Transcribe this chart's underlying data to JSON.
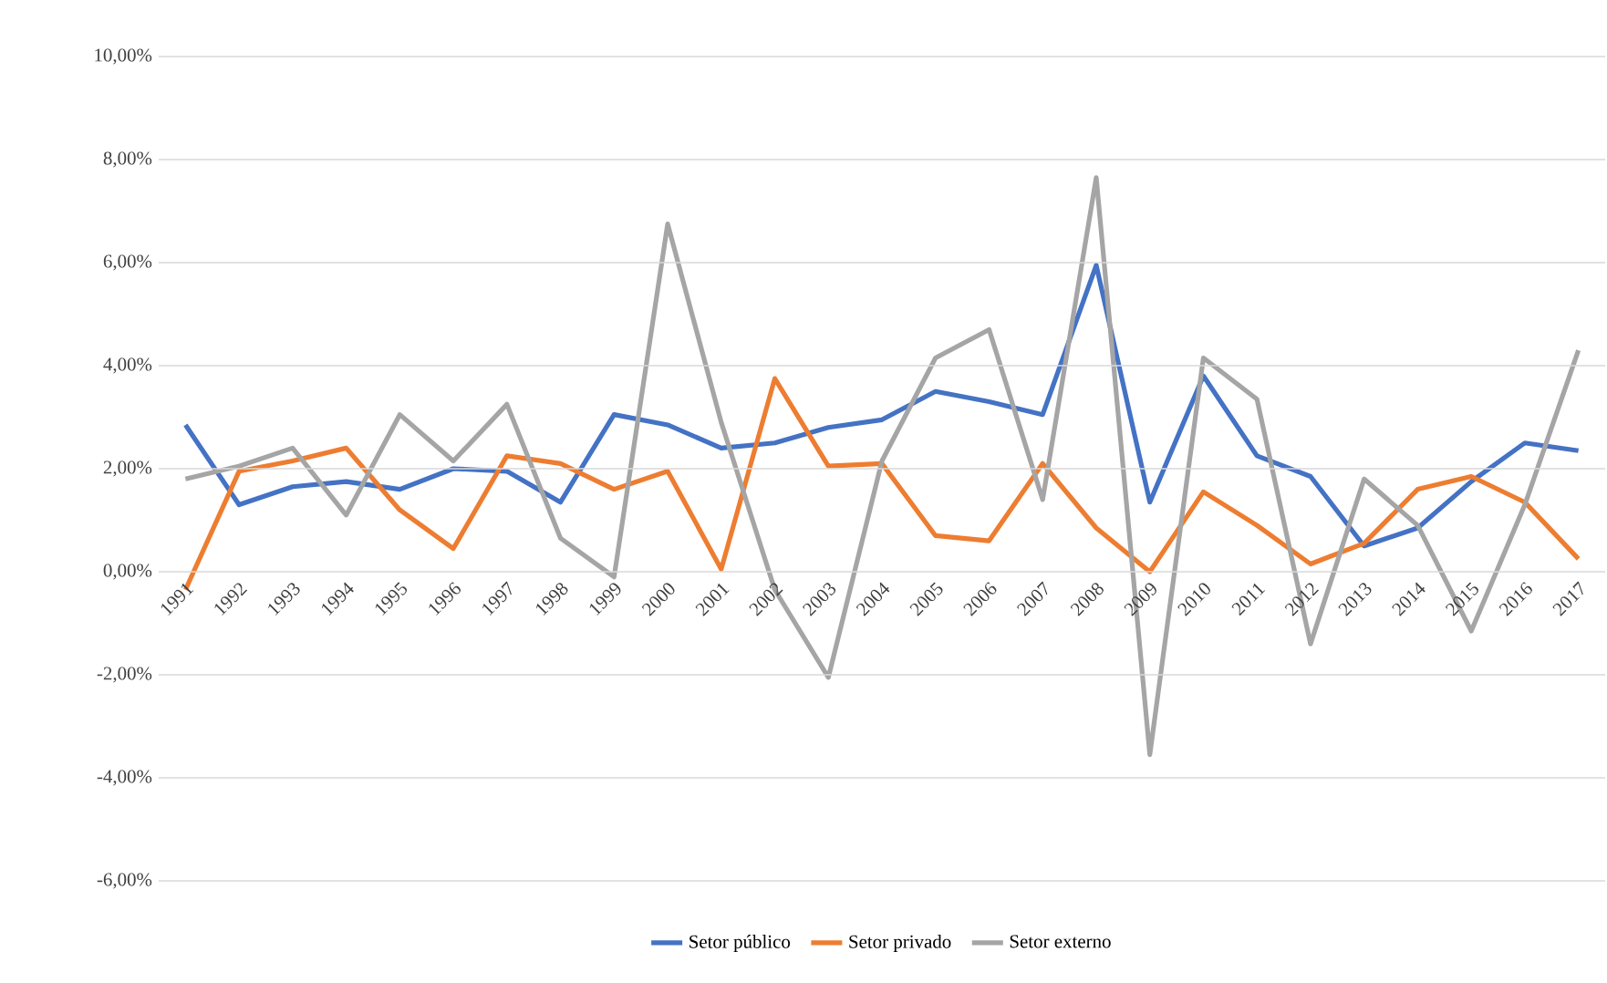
{
  "chart_data": {
    "type": "line",
    "categories": [
      "1991",
      "1992",
      "1993",
      "1994",
      "1995",
      "1996",
      "1997",
      "1998",
      "1999",
      "2000",
      "2001",
      "2002",
      "2003",
      "2004",
      "2005",
      "2006",
      "2007",
      "2008",
      "2009",
      "2010",
      "2011",
      "2012",
      "2013",
      "2014",
      "2015",
      "2016",
      "2017"
    ],
    "series": [
      {
        "name": "Setor público",
        "color": "#4472c4",
        "values": [
          2.85,
          1.3,
          1.65,
          1.75,
          1.6,
          2.0,
          1.95,
          1.35,
          3.05,
          2.85,
          2.4,
          2.5,
          2.8,
          2.95,
          3.5,
          3.3,
          3.05,
          5.95,
          1.35,
          3.8,
          2.25,
          1.85,
          0.5,
          0.85,
          1.75,
          2.5,
          2.35
        ]
      },
      {
        "name": "Setor privado",
        "color": "#ed7d31",
        "values": [
          -0.35,
          1.95,
          2.15,
          2.4,
          1.2,
          0.45,
          2.25,
          2.1,
          1.6,
          1.95,
          0.05,
          3.75,
          2.05,
          2.1,
          0.7,
          0.6,
          2.1,
          0.85,
          0.0,
          1.55,
          0.9,
          0.15,
          0.55,
          1.6,
          1.85,
          1.35,
          0.25
        ]
      },
      {
        "name": "Setor externo",
        "color": "#a5a5a5",
        "values": [
          1.8,
          2.05,
          2.4,
          1.1,
          3.05,
          2.15,
          3.25,
          0.65,
          -0.1,
          6.75,
          2.9,
          -0.35,
          -2.05,
          2.15,
          4.15,
          4.7,
          1.4,
          7.65,
          -3.55,
          4.15,
          3.35,
          -1.4,
          1.8,
          0.9,
          -1.15,
          1.3,
          4.3
        ]
      }
    ],
    "ylim": [
      -6,
      10
    ],
    "yticks": [
      {
        "value": -6,
        "label": "-6,00%"
      },
      {
        "value": -4,
        "label": "-4,00%"
      },
      {
        "value": -2,
        "label": "-2,00%"
      },
      {
        "value": 0,
        "label": "0,00%"
      },
      {
        "value": 2,
        "label": "2,00%"
      },
      {
        "value": 4,
        "label": "4,00%"
      },
      {
        "value": 6,
        "label": "6,00%"
      },
      {
        "value": 8,
        "label": "8,00%"
      },
      {
        "value": 10,
        "label": "10,00%"
      }
    ],
    "grid": "y",
    "legend": "bottom",
    "marker": "none",
    "line_style": "solid"
  }
}
